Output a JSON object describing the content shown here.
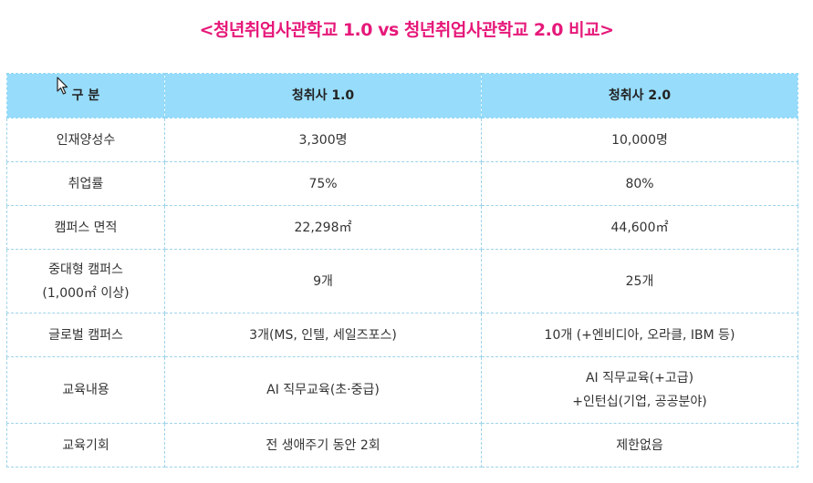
{
  "page": {
    "title": "<청년취업사관학교 1.0 vs 청년취업사관학교 2.0 비교>"
  },
  "colors": {
    "title": "#e6197a",
    "header_bg": "#97dcfb",
    "border": "#9fd3ea"
  },
  "icons": {
    "cursor": "mouse-pointer-icon"
  },
  "table": {
    "headers": [
      "구 분",
      "청취사 1.0",
      "청취사 2.0"
    ],
    "rows": [
      {
        "label": [
          "인재양성수"
        ],
        "v1": [
          "3,300명"
        ],
        "v2": [
          "10,000명"
        ]
      },
      {
        "label": [
          "취업률"
        ],
        "v1": [
          "75%"
        ],
        "v2": [
          "80%"
        ]
      },
      {
        "label": [
          "캠퍼스 면적"
        ],
        "v1": [
          "22,298㎡"
        ],
        "v2": [
          "44,600㎡"
        ]
      },
      {
        "label": [
          "중대형 캠퍼스",
          "(1,000㎡ 이상)"
        ],
        "v1": [
          "9개"
        ],
        "v2": [
          "25개"
        ]
      },
      {
        "label": [
          "글로벌 캠퍼스"
        ],
        "v1": [
          "3개(MS, 인텔, 세일즈포스)"
        ],
        "v2": [
          "10개 (+엔비디아, 오라클, IBM 등)"
        ]
      },
      {
        "label": [
          "교육내용"
        ],
        "v1": [
          "AI 직무교육(초·중급)"
        ],
        "v2": [
          "AI 직무교육(+고급)",
          "+인턴십(기업, 공공분야)"
        ]
      },
      {
        "label": [
          "교육기회"
        ],
        "v1": [
          "전 생애주기 동안 2회"
        ],
        "v2": [
          "제한없음"
        ]
      }
    ]
  }
}
